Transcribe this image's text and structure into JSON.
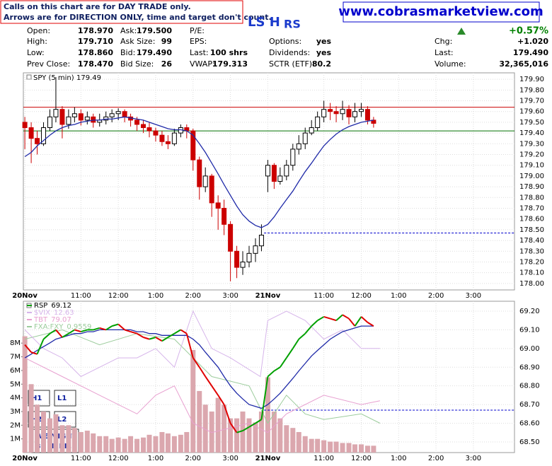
{
  "header": {
    "notice": [
      "Calls on this chart are for DAY TRADE only.",
      "Arrows are for DIRECTION ONLY, time and target don't count."
    ],
    "url": "www.cobrasmarketview.com",
    "tag": "LS H",
    "tag_sub": "RS"
  },
  "quote": {
    "rows": [
      [
        [
          "Open:",
          "178.970"
        ],
        [
          "Ask:",
          "179.500"
        ],
        [
          "P/E:",
          ""
        ],
        [
          "",
          ""
        ]
      ],
      [
        [
          "High:",
          "179.710"
        ],
        [
          "Ask Size:",
          "99"
        ],
        [
          "EPS:",
          ""
        ],
        [
          "Options:",
          "yes"
        ]
      ],
      [
        [
          "Low:",
          "178.860"
        ],
        [
          "Bid:",
          "179.490"
        ],
        [
          "Last:",
          "100 shrs"
        ],
        [
          "Dividends:",
          "yes"
        ]
      ],
      [
        [
          "Prev Close:",
          "178.470"
        ],
        [
          "Bid Size:",
          "26"
        ],
        [
          "VWAP:",
          "179.313"
        ],
        [
          "SCTR (ETF):",
          "80.2"
        ]
      ]
    ],
    "right": [
      [
        "",
        "+0.57%"
      ],
      [
        "Chg:",
        "+1.020"
      ],
      [
        "Last:",
        "179.490"
      ],
      [
        "Volume:",
        "32,365,016"
      ]
    ],
    "change_color": "#008000"
  },
  "annotations": {
    "boxes": [
      "H1",
      "L1",
      "H2",
      "L2"
    ],
    "note": [
      "WE MIGHT",
      "BE HERE."
    ]
  },
  "chart_data": [
    {
      "type": "candlestick",
      "title": "SPY (5 min)",
      "last": 179.49,
      "up_color": "#000000",
      "down_color": "#cc0000",
      "grid": true,
      "x": [
        0,
        0.17,
        0.33,
        0.5,
        0.67,
        0.83,
        1,
        1.17,
        1.33,
        1.5,
        1.67,
        1.83,
        2,
        2.17,
        2.33,
        2.5,
        2.67,
        2.83,
        3,
        3.17,
        3.33,
        3.5,
        3.67,
        3.83,
        4,
        4.17,
        4.33,
        4.5,
        4.67,
        4.83,
        5,
        5.17,
        5.33,
        5.5,
        5.67,
        5.83,
        6,
        6.17,
        6.33,
        6.5,
        6.67,
        6.83,
        7,
        7.17,
        7.33,
        7.5,
        7.67,
        7.83,
        8,
        8.17,
        8.33,
        8.5,
        8.67,
        8.83,
        9,
        9.17,
        9.33
      ],
      "open": [
        179.5,
        179.45,
        179.35,
        179.3,
        179.45,
        179.55,
        179.62,
        179.48,
        179.55,
        179.58,
        179.52,
        179.55,
        179.5,
        179.52,
        179.55,
        179.58,
        179.6,
        179.55,
        179.52,
        179.48,
        179.45,
        179.42,
        179.38,
        179.32,
        179.3,
        179.4,
        179.45,
        179.42,
        179.15,
        178.9,
        179.0,
        178.75,
        178.7,
        178.55,
        178.3,
        178.15,
        178.2,
        178.28,
        178.35,
        179.0,
        179.1,
        178.95,
        179.0,
        179.1,
        179.25,
        179.3,
        179.4,
        179.45,
        179.55,
        179.62,
        179.6,
        179.58,
        179.62,
        179.55,
        179.6,
        179.62,
        179.52
      ],
      "high": [
        179.55,
        179.5,
        179.42,
        179.5,
        179.62,
        179.92,
        179.65,
        179.62,
        179.64,
        179.62,
        179.6,
        179.58,
        179.58,
        179.6,
        179.62,
        179.63,
        179.62,
        179.58,
        179.55,
        179.52,
        179.5,
        179.45,
        179.42,
        179.38,
        179.44,
        179.48,
        179.48,
        179.44,
        179.18,
        179.08,
        179.02,
        178.82,
        178.78,
        178.58,
        178.35,
        178.3,
        178.35,
        178.42,
        178.55,
        179.15,
        179.12,
        179.08,
        179.15,
        179.3,
        179.38,
        179.45,
        179.52,
        179.6,
        179.7,
        179.68,
        179.65,
        179.7,
        179.66,
        179.68,
        179.68,
        179.65,
        179.55
      ],
      "low": [
        179.25,
        179.12,
        179.2,
        179.28,
        179.42,
        179.5,
        179.35,
        179.44,
        179.5,
        179.47,
        179.48,
        179.45,
        179.46,
        179.48,
        179.5,
        179.52,
        179.5,
        179.46,
        179.42,
        179.4,
        179.36,
        179.32,
        179.28,
        179.25,
        179.28,
        179.36,
        179.35,
        179.05,
        178.78,
        178.85,
        178.62,
        178.5,
        178.45,
        178.02,
        178.05,
        178.08,
        178.15,
        178.2,
        178.3,
        178.85,
        178.88,
        178.92,
        178.96,
        179.05,
        179.2,
        179.25,
        179.38,
        179.42,
        179.5,
        179.52,
        179.5,
        179.52,
        179.48,
        179.5,
        179.55,
        179.48,
        179.45
      ],
      "close": [
        179.45,
        179.35,
        179.3,
        179.45,
        179.55,
        179.62,
        179.48,
        179.55,
        179.58,
        179.52,
        179.55,
        179.5,
        179.52,
        179.55,
        179.58,
        179.6,
        179.55,
        179.52,
        179.48,
        179.45,
        179.42,
        179.38,
        179.32,
        179.3,
        179.4,
        179.45,
        179.42,
        179.15,
        178.9,
        179.0,
        178.75,
        178.7,
        178.55,
        178.3,
        178.15,
        178.2,
        178.28,
        178.35,
        178.45,
        179.1,
        178.95,
        179.0,
        179.1,
        179.25,
        179.3,
        179.4,
        179.45,
        179.55,
        179.62,
        179.6,
        179.58,
        179.62,
        179.55,
        179.6,
        179.62,
        179.52,
        179.49
      ],
      "overlays": [
        {
          "color": "#1f2aa8",
          "values": [
            179.18,
            179.22,
            179.28,
            179.33,
            179.38,
            179.42,
            179.45,
            179.47,
            179.48,
            179.5,
            179.51,
            179.52,
            179.52,
            179.53,
            179.53,
            179.54,
            179.55,
            179.54,
            179.53,
            179.52,
            179.5,
            179.48,
            179.46,
            179.44,
            179.43,
            179.43,
            179.42,
            179.38,
            179.3,
            179.22,
            179.12,
            179.02,
            178.92,
            178.82,
            178.72,
            178.64,
            178.58,
            178.54,
            178.52,
            178.55,
            178.62,
            178.7,
            178.78,
            178.86,
            178.95,
            179.04,
            179.12,
            179.2,
            179.28,
            179.34,
            179.39,
            179.43,
            179.46,
            179.48,
            179.5,
            179.51,
            179.52
          ]
        }
      ],
      "levels": [
        {
          "value": 179.64,
          "color": "#cc0000"
        },
        {
          "value": 179.42,
          "color": "#007000"
        },
        {
          "value": 178.47,
          "color": "#0000cc",
          "from": 6.4,
          "dashed": true
        }
      ],
      "xlim": [
        -0.04,
        13.1
      ],
      "ylim": [
        177.94,
        179.96
      ],
      "xticks": [
        {
          "value": 0,
          "label": "20Nov"
        },
        {
          "value": 1.5,
          "label": "11:00"
        },
        {
          "value": 2.5,
          "label": "12:00"
        },
        {
          "value": 3.5,
          "label": "1:00"
        },
        {
          "value": 4.5,
          "label": "2:00"
        },
        {
          "value": 5.5,
          "label": "3:00"
        },
        {
          "value": 6.5,
          "label": "21Nov"
        },
        {
          "value": 8,
          "label": "11:00"
        },
        {
          "value": 9,
          "label": "12:00"
        },
        {
          "value": 10,
          "label": "1:00"
        },
        {
          "value": 11,
          "label": "2:00"
        },
        {
          "value": 12,
          "label": "3:00"
        }
      ],
      "yticks": [
        {
          "value": 178.0,
          "label": "178.00"
        },
        {
          "value": 178.1,
          "label": "178.10"
        },
        {
          "value": 178.2,
          "label": "178.20"
        },
        {
          "value": 178.3,
          "label": "178.30"
        },
        {
          "value": 178.4,
          "label": "178.40"
        },
        {
          "value": 178.5,
          "label": "178.50"
        },
        {
          "value": 178.6,
          "label": "178.60"
        },
        {
          "value": 178.7,
          "label": "178.70"
        },
        {
          "value": 178.8,
          "label": "178.80"
        },
        {
          "value": 178.9,
          "label": "178.90"
        },
        {
          "value": 179.0,
          "label": "179.00"
        },
        {
          "value": 179.1,
          "label": "179.10"
        },
        {
          "value": 179.2,
          "label": "179.20"
        },
        {
          "value": 179.3,
          "label": "179.30"
        },
        {
          "value": 179.4,
          "label": "179.40"
        },
        {
          "value": 179.5,
          "label": "179.50"
        },
        {
          "value": 179.6,
          "label": "179.60"
        },
        {
          "value": 179.7,
          "label": "179.70"
        },
        {
          "value": 179.8,
          "label": "179.80"
        },
        {
          "value": 179.9,
          "label": "179.90"
        }
      ]
    },
    {
      "type": "line",
      "grid": true,
      "x": [
        0,
        0.17,
        0.33,
        0.5,
        0.67,
        0.83,
        1,
        1.17,
        1.33,
        1.5,
        1.67,
        1.83,
        2,
        2.17,
        2.33,
        2.5,
        2.67,
        2.83,
        3,
        3.17,
        3.33,
        3.5,
        3.67,
        3.83,
        4,
        4.17,
        4.33,
        4.5,
        4.67,
        4.83,
        5,
        5.17,
        5.33,
        5.5,
        5.67,
        5.83,
        6,
        6.17,
        6.33,
        6.5,
        6.67,
        6.83,
        7,
        7.17,
        7.33,
        7.5,
        7.67,
        7.83,
        8,
        8.17,
        8.33,
        8.5,
        8.67,
        8.83,
        9,
        9.17,
        9.33
      ],
      "series": [
        {
          "kind": "volume",
          "axis": "y2",
          "color": "#dba7ae",
          "values": [
            8500000,
            5000000,
            3500000,
            3000000,
            2500000,
            2800000,
            2000000,
            2000000,
            1800000,
            1500000,
            1600000,
            1400000,
            1200000,
            1200000,
            1000000,
            1100000,
            1000000,
            1200000,
            1000000,
            1100000,
            1300000,
            1200000,
            1500000,
            1400000,
            1200000,
            1300000,
            1500000,
            7500000,
            4500000,
            3500000,
            3000000,
            4000000,
            3500000,
            2500000,
            2500000,
            3000000,
            2500000,
            2200000,
            3000000,
            5500000,
            3000000,
            2500000,
            2000000,
            1800000,
            1500000,
            1200000,
            1000000,
            1000000,
            900000,
            800000,
            800000,
            700000,
            700000,
            600000,
            600000,
            500000,
            500000
          ]
        },
        {
          "name": "FXA:FXY",
          "last": 0.9559,
          "color": "#9ccc9c",
          "x": [
            0,
            1,
            2,
            3,
            4,
            4.5,
            5,
            6,
            6.5,
            7,
            7.5,
            8,
            9,
            9.5
          ],
          "values": [
            69.05,
            69.1,
            69.02,
            69.08,
            69.05,
            68.95,
            68.85,
            68.8,
            68.6,
            68.75,
            68.65,
            68.62,
            68.65,
            68.6
          ]
        },
        {
          "name": "TBT",
          "last": 79.07,
          "color": "#e8a0d0",
          "x": [
            0,
            1,
            2,
            3,
            3.5,
            4,
            4.5,
            5,
            6,
            6.5,
            7,
            8,
            9,
            9.5
          ],
          "values": [
            68.95,
            68.85,
            68.75,
            68.65,
            68.75,
            68.8,
            68.6,
            68.55,
            68.6,
            68.55,
            68.65,
            68.75,
            68.7,
            68.72
          ]
        },
        {
          "name": "$VIX",
          "last": 12.63,
          "color": "#d6b4ea",
          "x": [
            0,
            0.5,
            1,
            1.5,
            2,
            2.5,
            3,
            3.5,
            4,
            4.5,
            5,
            5.5,
            6.3,
            6.5,
            7,
            7.5,
            8,
            8.5,
            9,
            9.5
          ],
          "values": [
            69.1,
            69.0,
            68.95,
            68.85,
            68.9,
            68.95,
            68.95,
            69.0,
            68.9,
            69.2,
            69.0,
            68.95,
            68.85,
            69.15,
            69.2,
            69.15,
            69.05,
            69.1,
            69.0,
            69.0
          ]
        },
        {
          "kind": "average",
          "color": "#1f2aa8",
          "values": [
            68.95,
            68.97,
            68.99,
            69.01,
            69.03,
            69.05,
            69.06,
            69.07,
            69.08,
            69.08,
            69.09,
            69.09,
            69.1,
            69.1,
            69.1,
            69.1,
            69.1,
            69.1,
            69.09,
            69.09,
            69.08,
            69.08,
            69.07,
            69.07,
            69.07,
            69.07,
            69.07,
            69.05,
            69.02,
            68.98,
            68.94,
            68.9,
            68.85,
            68.8,
            68.76,
            68.73,
            68.7,
            68.69,
            68.68,
            68.7,
            68.73,
            68.76,
            68.8,
            68.84,
            68.88,
            68.92,
            68.96,
            68.99,
            69.02,
            69.05,
            69.07,
            69.09,
            69.1,
            69.11,
            69.12,
            69.12,
            69.12
          ]
        },
        {
          "name": "RSP",
          "last": 69.12,
          "kind": "price",
          "color": "#000000",
          "up_color": "#00a000",
          "down_color": "#e00000",
          "values": [
            69.02,
            68.98,
            68.97,
            69.05,
            69.08,
            69.1,
            69.06,
            69.08,
            69.1,
            69.09,
            69.1,
            69.1,
            69.11,
            69.1,
            69.12,
            69.13,
            69.1,
            69.09,
            69.08,
            69.06,
            69.05,
            69.06,
            69.04,
            69.06,
            69.08,
            69.1,
            69.08,
            68.95,
            68.9,
            68.85,
            68.8,
            68.75,
            68.7,
            68.6,
            68.55,
            68.56,
            68.58,
            68.6,
            68.62,
            68.85,
            68.88,
            68.9,
            68.95,
            69.0,
            69.05,
            69.08,
            69.12,
            69.15,
            69.17,
            69.16,
            69.15,
            69.18,
            69.16,
            69.12,
            69.17,
            69.14,
            69.12
          ]
        }
      ],
      "levels": [
        {
          "value": 68.67,
          "color": "#0000cc",
          "from": 6.4,
          "dashed": true
        }
      ],
      "xlim": [
        -0.04,
        13.1
      ],
      "ylim": [
        68.443,
        69.253
      ],
      "y2lim": [
        0,
        11060000
      ],
      "xticks": [
        {
          "value": 0,
          "label": "20Nov"
        },
        {
          "value": 1.5,
          "label": "11:00"
        },
        {
          "value": 2.5,
          "label": "12:00"
        },
        {
          "value": 3.5,
          "label": "1:00"
        },
        {
          "value": 4.5,
          "label": "2:00"
        },
        {
          "value": 5.5,
          "label": "3:00"
        },
        {
          "value": 6.5,
          "label": "21Nov"
        },
        {
          "value": 8,
          "label": "11:00"
        },
        {
          "value": 9,
          "label": "12:00"
        },
        {
          "value": 10,
          "label": "1:00"
        },
        {
          "value": 11,
          "label": "2:00"
        },
        {
          "value": 12,
          "label": "3:00"
        }
      ],
      "yticks": [
        {
          "value": 68.5,
          "label": "68.50"
        },
        {
          "value": 68.6,
          "label": "68.60"
        },
        {
          "value": 68.7,
          "label": "68.70"
        },
        {
          "value": 68.8,
          "label": "68.80"
        },
        {
          "value": 68.9,
          "label": "68.90"
        },
        {
          "value": 69.0,
          "label": "69.00"
        },
        {
          "value": 69.1,
          "label": "69.10"
        },
        {
          "value": 69.2,
          "label": "69.20"
        }
      ],
      "y2ticks": [
        {
          "value": 1000000,
          "label": "1M"
        },
        {
          "value": 2000000,
          "label": "2M"
        },
        {
          "value": 3000000,
          "label": "3M"
        },
        {
          "value": 4000000,
          "label": "4M"
        },
        {
          "value": 5000000,
          "label": "5M"
        },
        {
          "value": 6000000,
          "label": "6M"
        },
        {
          "value": 7000000,
          "label": "7M"
        },
        {
          "value": 8000000,
          "label": "8M"
        }
      ]
    }
  ]
}
